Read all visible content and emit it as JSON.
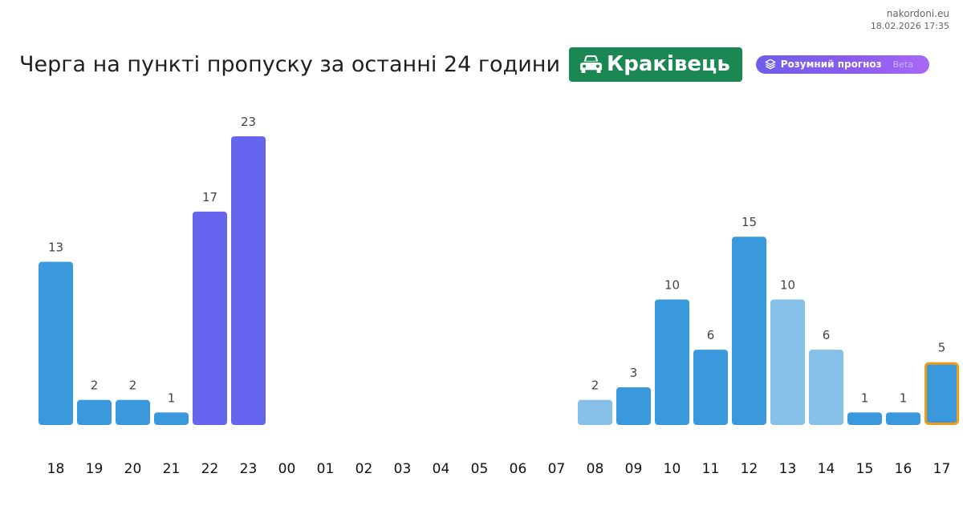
{
  "site": {
    "domain": "nakordoni.eu",
    "timestamp": "18.02.2026 17:35"
  },
  "header": {
    "title": "Черга на пункті пропуску за останні 24 години",
    "place": "Краківець",
    "place_icon": "car-icon",
    "smart_label": "Розумний прогноз",
    "smart_icon": "layers-icon",
    "smart_badge": "Beta"
  },
  "colors": {
    "actual": "#3a98dc",
    "forecast": "#86c0e8",
    "night": "#6565f0",
    "current_outline": "#f39c12",
    "label": "#444444",
    "axis_label": "#111111"
  },
  "chart_data": {
    "type": "bar",
    "title": "Черга на пункті пропуску за останні 24 години",
    "categories": [
      "18",
      "19",
      "20",
      "21",
      "22",
      "23",
      "00",
      "01",
      "02",
      "03",
      "04",
      "05",
      "06",
      "07",
      "08",
      "09",
      "10",
      "11",
      "12",
      "13",
      "14",
      "15",
      "16",
      "17"
    ],
    "values": [
      13,
      2,
      2,
      1,
      17,
      23,
      null,
      null,
      null,
      null,
      null,
      null,
      null,
      null,
      2,
      3,
      10,
      6,
      15,
      10,
      6,
      1,
      1,
      5
    ],
    "bar_kind": [
      "actual",
      "actual",
      "actual",
      "actual",
      "night",
      "night",
      "none",
      "none",
      "none",
      "none",
      "none",
      "none",
      "none",
      "none",
      "forecast",
      "actual",
      "actual",
      "actual",
      "actual",
      "forecast",
      "forecast",
      "actual",
      "actual",
      "actual"
    ],
    "current_index": 23,
    "ylim": [
      0,
      23
    ]
  }
}
